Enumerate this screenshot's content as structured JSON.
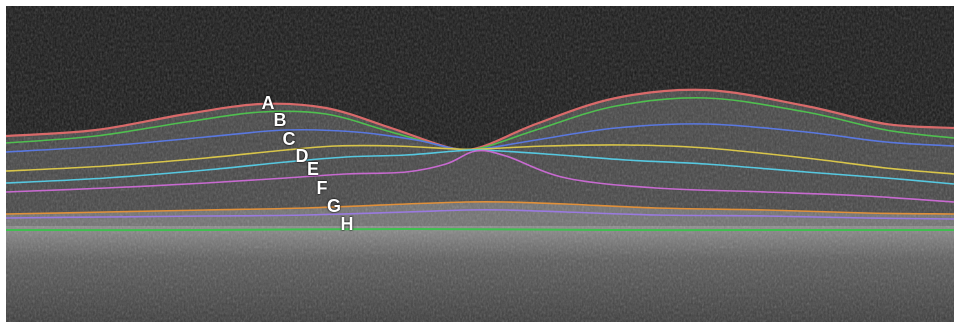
{
  "scan": {
    "layers": [
      {
        "label": "A",
        "color": "#d96a6a"
      },
      {
        "label": "B",
        "color": "#4fbf4f"
      },
      {
        "label": "C",
        "color": "#5a78e0"
      },
      {
        "label": "D",
        "color": "#d8c54a"
      },
      {
        "label": "E",
        "color": "#56c8e0"
      },
      {
        "label": "F",
        "color": "#c76ad0"
      },
      {
        "label": "G",
        "color": "#e0903a"
      },
      {
        "label": "H",
        "color": "#9a7ae0"
      }
    ],
    "lower_boundary_color": "#3fbf4f"
  }
}
